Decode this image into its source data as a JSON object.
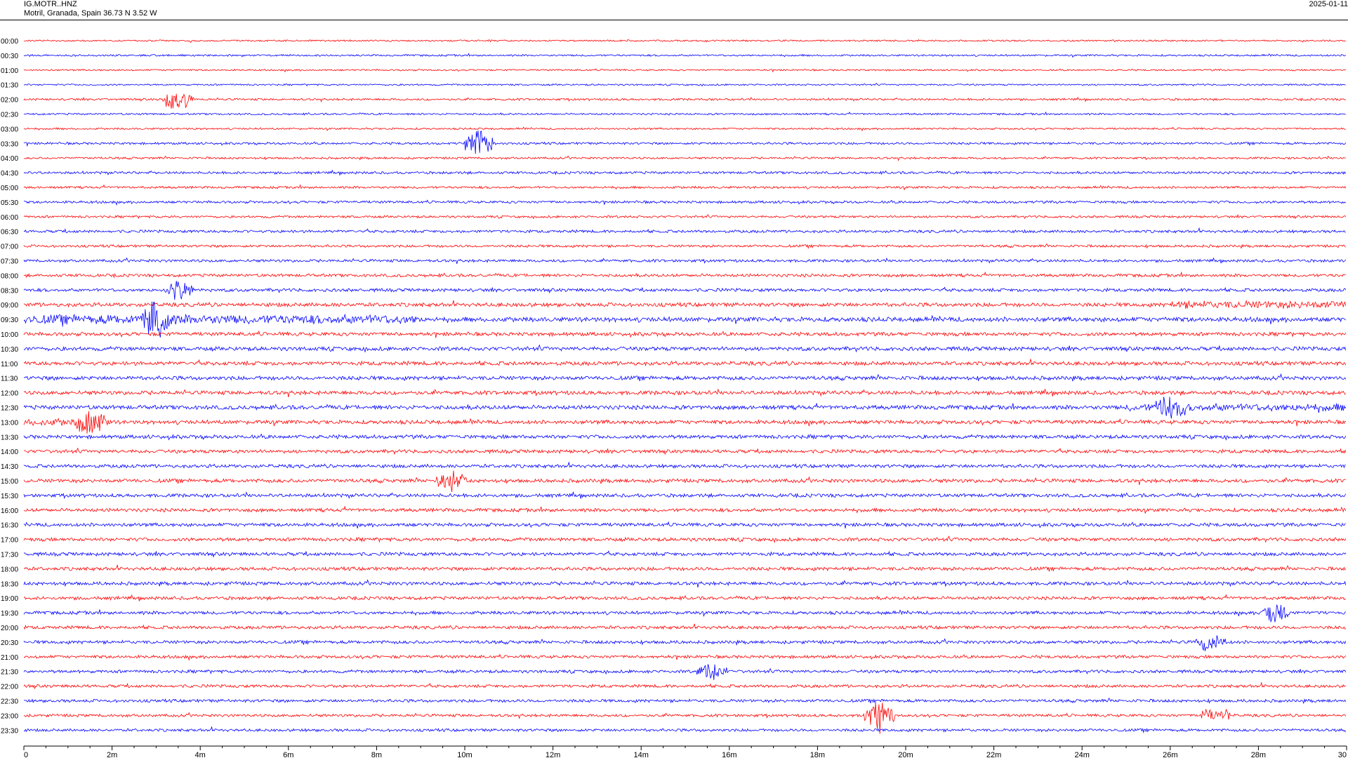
{
  "header": {
    "station": "IG.MOTR..HNZ",
    "location": "Motril, Granada, Spain  36.73 N 3.52 W",
    "date": "2025-01-11"
  },
  "chart_data": {
    "type": "line",
    "subtype": "helicorder",
    "colors": [
      "#ff0000",
      "#0000ff"
    ],
    "rows": [
      "00:00",
      "00:30",
      "01:00",
      "01:30",
      "02:00",
      "02:30",
      "03:00",
      "03:30",
      "04:00",
      "04:30",
      "05:00",
      "05:30",
      "06:00",
      "06:30",
      "07:00",
      "07:30",
      "08:00",
      "08:30",
      "09:00",
      "09:30",
      "10:00",
      "10:30",
      "11:00",
      "11:30",
      "12:00",
      "12:30",
      "13:00",
      "13:30",
      "14:00",
      "14:30",
      "15:00",
      "15:30",
      "16:00",
      "16:30",
      "17:00",
      "17:30",
      "18:00",
      "18:30",
      "19:00",
      "19:30",
      "20:00",
      "20:30",
      "21:00",
      "21:30",
      "22:00",
      "22:30",
      "23:00",
      "23:30"
    ],
    "xlim": [
      0,
      30
    ],
    "x_ticks": [
      "0",
      "2m",
      "4m",
      "6m",
      "8m",
      "10m",
      "12m",
      "14m",
      "16m",
      "18m",
      "20m",
      "22m",
      "24m",
      "26m",
      "28m",
      "30"
    ],
    "x_tick_values": [
      0,
      2,
      4,
      6,
      8,
      10,
      12,
      14,
      16,
      18,
      20,
      22,
      24,
      26,
      28,
      30
    ],
    "row_activity": [
      0.35,
      0.4,
      0.35,
      0.35,
      0.45,
      0.4,
      0.4,
      0.5,
      0.45,
      0.55,
      0.5,
      0.55,
      0.5,
      0.6,
      0.55,
      0.6,
      0.65,
      0.7,
      0.85,
      1.0,
      0.8,
      0.85,
      0.85,
      0.85,
      0.85,
      0.9,
      0.85,
      0.8,
      0.75,
      0.75,
      0.8,
      0.75,
      0.75,
      0.75,
      0.75,
      0.75,
      0.75,
      0.75,
      0.7,
      0.7,
      0.7,
      0.7,
      0.65,
      0.65,
      0.65,
      0.65,
      0.6,
      0.6
    ],
    "events": [
      {
        "row": "02:00",
        "x": 3.5,
        "amp": 3.5
      },
      {
        "row": "03:30",
        "x": 10.3,
        "amp": 4.0
      },
      {
        "row": "08:30",
        "x": 3.5,
        "amp": 2.5
      },
      {
        "row": "09:30",
        "x": 3.0,
        "amp": 2.2
      },
      {
        "row": "12:30",
        "x": 26.0,
        "amp": 2.0
      },
      {
        "row": "13:00",
        "x": 1.5,
        "amp": 2.0
      },
      {
        "row": "15:00",
        "x": 9.7,
        "amp": 2.5
      },
      {
        "row": "19:30",
        "x": 28.4,
        "amp": 3.0
      },
      {
        "row": "20:30",
        "x": 26.9,
        "amp": 2.5
      },
      {
        "row": "21:30",
        "x": 15.6,
        "amp": 2.0
      },
      {
        "row": "23:00",
        "x": 19.4,
        "amp": 4.5
      },
      {
        "row": "23:00",
        "x": 27.0,
        "amp": 2.5
      }
    ]
  }
}
